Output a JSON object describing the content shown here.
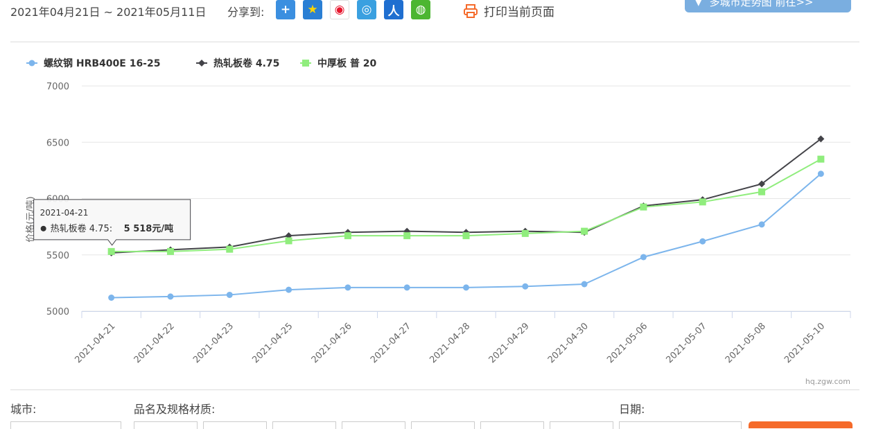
{
  "header": {
    "date_range": "2021年04月21日 ~ 2021年05月11日",
    "share_label": "分享到:",
    "share_icons": [
      "plus-share-icon",
      "qzone-star-icon",
      "weibo-icon",
      "tencent-weibo-icon",
      "renren-icon",
      "wechat-icon"
    ],
    "print_label": "打印当前页面",
    "city_map_label": "多城市走势图  前往>>"
  },
  "filters": {
    "city_label": "城市:",
    "product_label": "品名及规格材质:",
    "date_label": "日期:"
  },
  "credit": "hq.zgw.com",
  "colors": {
    "series1": "#7cb5ec",
    "series2": "#434348",
    "series3": "#90ed7d",
    "print_orange": "#f56a2a"
  },
  "chart_data": {
    "type": "line",
    "categories": [
      "2021-04-21",
      "2021-04-22",
      "2021-04-23",
      "2021-04-25",
      "2021-04-26",
      "2021-04-27",
      "2021-04-28",
      "2021-04-29",
      "2021-04-30",
      "2021-05-06",
      "2021-05-07",
      "2021-05-08",
      "2021-05-10"
    ],
    "ylim": [
      5000,
      7000
    ],
    "yticks": [
      5000,
      5500,
      6000,
      6500,
      7000
    ],
    "ylabel": "价格(元/吨)",
    "grid": true,
    "legend_position": "top-left",
    "series": [
      {
        "name": "螺纹钢 HRB400E 16-25",
        "marker": "circle",
        "values": [
          5120,
          5130,
          5145,
          5190,
          5210,
          5210,
          5210,
          5220,
          5240,
          5480,
          5620,
          5770,
          6220
        ]
      },
      {
        "name": "热轧板卷 4.75",
        "marker": "diamond",
        "values": [
          5518,
          5545,
          5570,
          5670,
          5700,
          5710,
          5700,
          5710,
          5700,
          5935,
          5990,
          6130,
          6530
        ]
      },
      {
        "name": "中厚板 普 20",
        "marker": "square",
        "values": [
          5530,
          5530,
          5550,
          5625,
          5670,
          5670,
          5670,
          5690,
          5710,
          5925,
          5970,
          6060,
          6350
        ]
      }
    ],
    "tooltip": {
      "date": "2021-04-21",
      "series": "热轧板卷 4.75:",
      "value": "5 518元/吨"
    }
  }
}
